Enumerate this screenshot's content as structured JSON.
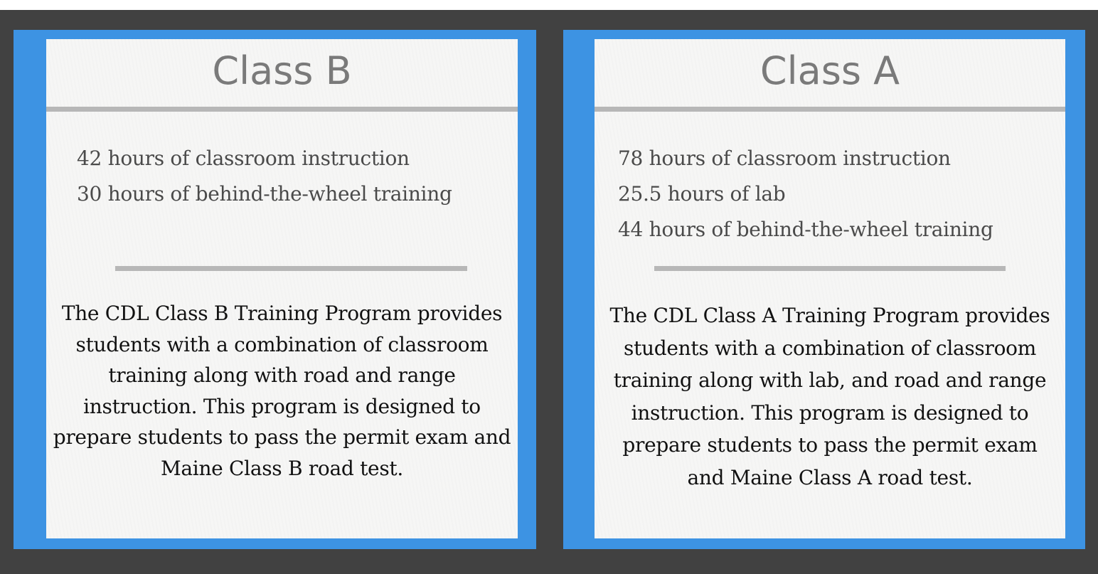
{
  "cards": [
    {
      "title": "Class B",
      "items": [
        "42 hours of classroom instruction",
        "30 hours of behind-the-wheel training"
      ],
      "description": "The CDL Class B Training Program provides students with a combination of classroom training along with road and range instruction. This program is designed to prepare students to pass the permit exam and Maine Class B road test."
    },
    {
      "title": "Class A",
      "items": [
        "78 hours of classroom instruction",
        "25.5 hours of lab",
        "44 hours of behind-the-wheel training"
      ],
      "description": "The CDL Class A Training Program provides students with a combination of classroom training along with lab, and road and range instruction. This program is designed to prepare students to pass the permit exam and Maine Class A road test."
    }
  ],
  "colors": {
    "background": "#414141",
    "frame": "#3d93e3",
    "paper": "#f6f6f5",
    "rule": "#b7b7b7"
  }
}
